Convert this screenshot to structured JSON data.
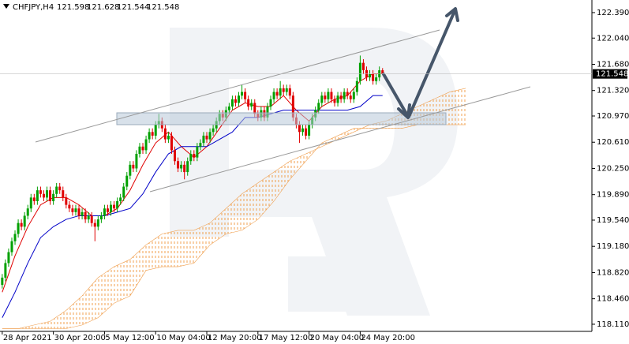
{
  "chart_data": {
    "type": "candlestick",
    "title": "CHFJPY,H4",
    "up_color": "#00a000",
    "down_color": "#e00000",
    "open": [
      118.65,
      118.75,
      118.95,
      119.1,
      119.25,
      119.35,
      119.5,
      119.45,
      119.6,
      119.7,
      119.85,
      119.8,
      119.95,
      119.9,
      119.85,
      119.95,
      119.8,
      119.9,
      120.0,
      119.95,
      119.85,
      119.75,
      119.7,
      119.65,
      119.7,
      119.6,
      119.65,
      119.55,
      119.6,
      119.5,
      119.45,
      119.55,
      119.6,
      119.7,
      119.65,
      119.75,
      119.7,
      119.8,
      119.85,
      120.0,
      120.15,
      120.3,
      120.25,
      120.45,
      120.55,
      120.5,
      120.65,
      120.75,
      120.7,
      120.85,
      120.9,
      120.8,
      120.65,
      120.7,
      120.5,
      120.35,
      120.25,
      120.3,
      120.2,
      120.35,
      120.45,
      120.4,
      120.55,
      120.6,
      120.7,
      120.65,
      120.75,
      120.8,
      120.9,
      121.0,
      120.95,
      121.05,
      121.1,
      121.2,
      121.15,
      121.25,
      121.3,
      121.2,
      121.1,
      121.15,
      121.0,
      120.95,
      121.05,
      120.95,
      121.1,
      121.2,
      121.3,
      121.25,
      121.35,
      121.3,
      121.35,
      121.25,
      120.95,
      120.85,
      120.75,
      120.8,
      120.7,
      120.85,
      120.95,
      121.05,
      121.15,
      121.25,
      121.2,
      121.3,
      121.2,
      121.15,
      121.25,
      121.2,
      121.3,
      121.25,
      121.2,
      121.3,
      121.45,
      121.7,
      121.6,
      121.5,
      121.55,
      121.45,
      121.5,
      121.598
    ],
    "high": [
      118.8,
      119.0,
      119.15,
      119.3,
      119.4,
      119.55,
      119.55,
      119.65,
      119.75,
      119.9,
      119.9,
      120.0,
      120.0,
      119.95,
      120.0,
      120.0,
      119.95,
      120.05,
      120.05,
      120.0,
      119.9,
      119.8,
      119.75,
      119.75,
      119.75,
      119.7,
      119.7,
      119.65,
      119.65,
      119.55,
      119.6,
      119.65,
      119.75,
      119.75,
      119.8,
      119.8,
      119.85,
      119.9,
      120.05,
      120.2,
      120.35,
      120.35,
      120.5,
      120.6,
      120.6,
      120.7,
      120.8,
      120.8,
      120.9,
      121.0,
      120.95,
      120.85,
      120.75,
      120.75,
      120.55,
      120.4,
      120.35,
      120.35,
      120.4,
      120.5,
      120.5,
      120.6,
      120.65,
      120.75,
      120.75,
      120.8,
      120.85,
      120.95,
      121.05,
      121.05,
      121.1,
      121.15,
      121.25,
      121.25,
      121.3,
      121.4,
      121.35,
      121.25,
      121.2,
      121.2,
      121.05,
      121.1,
      121.1,
      121.15,
      121.25,
      121.35,
      121.35,
      121.45,
      121.4,
      121.4,
      121.4,
      121.3,
      121.0,
      120.9,
      120.85,
      120.85,
      120.9,
      121.0,
      121.1,
      121.2,
      121.3,
      121.3,
      121.35,
      121.35,
      121.25,
      121.3,
      121.3,
      121.35,
      121.35,
      121.3,
      121.35,
      121.5,
      121.8,
      121.75,
      121.65,
      121.6,
      121.6,
      121.55,
      121.65,
      121.628
    ],
    "low": [
      118.6,
      118.7,
      118.9,
      119.05,
      119.2,
      119.3,
      119.4,
      119.4,
      119.55,
      119.65,
      119.75,
      119.75,
      119.85,
      119.8,
      119.8,
      119.75,
      119.75,
      119.85,
      119.9,
      119.8,
      119.7,
      119.65,
      119.6,
      119.6,
      119.55,
      119.55,
      119.5,
      119.5,
      119.45,
      119.25,
      119.4,
      119.5,
      119.55,
      119.6,
      119.6,
      119.65,
      119.65,
      119.75,
      119.8,
      119.95,
      120.1,
      120.2,
      120.2,
      120.4,
      120.45,
      120.45,
      120.6,
      120.65,
      120.65,
      120.8,
      120.75,
      120.6,
      120.6,
      120.45,
      120.3,
      120.2,
      120.2,
      120.1,
      120.15,
      120.3,
      120.35,
      120.35,
      120.5,
      120.55,
      120.6,
      120.6,
      120.7,
      120.75,
      120.85,
      120.9,
      120.9,
      121.0,
      121.05,
      121.1,
      121.1,
      121.2,
      121.15,
      121.05,
      121.05,
      120.95,
      120.9,
      120.9,
      120.9,
      120.9,
      121.05,
      121.15,
      121.2,
      121.2,
      121.25,
      121.25,
      121.2,
      120.9,
      120.8,
      120.6,
      120.7,
      120.65,
      120.65,
      120.8,
      120.9,
      121.0,
      121.1,
      121.15,
      121.15,
      121.15,
      121.1,
      121.1,
      121.15,
      121.15,
      121.2,
      121.15,
      121.15,
      121.25,
      121.4,
      121.55,
      121.45,
      121.45,
      121.4,
      121.4,
      121.45,
      121.544
    ],
    "close": [
      118.75,
      118.95,
      119.1,
      119.25,
      119.35,
      119.5,
      119.45,
      119.6,
      119.7,
      119.85,
      119.8,
      119.95,
      119.9,
      119.85,
      119.95,
      119.8,
      119.9,
      120.0,
      119.95,
      119.85,
      119.75,
      119.7,
      119.65,
      119.7,
      119.6,
      119.65,
      119.55,
      119.6,
      119.5,
      119.45,
      119.55,
      119.6,
      119.7,
      119.65,
      119.75,
      119.7,
      119.8,
      119.85,
      120.0,
      120.15,
      120.3,
      120.25,
      120.45,
      120.55,
      120.5,
      120.65,
      120.75,
      120.7,
      120.85,
      120.9,
      120.8,
      120.65,
      120.7,
      120.5,
      120.35,
      120.25,
      120.3,
      120.2,
      120.35,
      120.45,
      120.4,
      120.55,
      120.6,
      120.7,
      120.65,
      120.75,
      120.8,
      120.9,
      121.0,
      120.95,
      121.05,
      121.1,
      121.2,
      121.15,
      121.25,
      121.3,
      121.2,
      121.1,
      121.15,
      121.0,
      120.95,
      121.05,
      120.95,
      121.1,
      121.2,
      121.3,
      121.25,
      121.35,
      121.3,
      121.35,
      121.25,
      120.95,
      120.85,
      120.75,
      120.8,
      120.7,
      120.85,
      120.95,
      121.05,
      121.15,
      121.25,
      121.2,
      121.3,
      121.2,
      121.15,
      121.25,
      121.2,
      121.3,
      121.25,
      121.2,
      121.3,
      121.45,
      121.7,
      121.6,
      121.5,
      121.55,
      121.45,
      121.5,
      121.598,
      121.548
    ],
    "tenkan": {
      "color": "#e00000",
      "x": [
        0,
        4,
        8,
        12,
        16,
        20,
        24,
        28,
        32,
        36,
        40,
        44,
        48,
        52,
        56,
        60,
        64,
        68,
        72,
        76,
        80,
        84,
        88,
        92,
        96,
        100,
        104,
        108,
        112,
        116,
        119
      ],
      "values": [
        118.55,
        119.05,
        119.45,
        119.75,
        119.85,
        119.85,
        119.75,
        119.6,
        119.6,
        119.7,
        119.95,
        120.3,
        120.6,
        120.75,
        120.55,
        120.4,
        120.55,
        120.8,
        121.05,
        121.15,
        121.1,
        121.1,
        121.25,
        121.05,
        120.9,
        121.1,
        121.2,
        121.25,
        121.45,
        121.55,
        121.55
      ]
    },
    "kijun": {
      "color": "#0000c8",
      "x": [
        0,
        4,
        8,
        12,
        16,
        20,
        24,
        28,
        32,
        36,
        40,
        44,
        48,
        52,
        56,
        60,
        64,
        68,
        72,
        76,
        80,
        84,
        88,
        92,
        96,
        100,
        104,
        108,
        112,
        116,
        119
      ],
      "values": [
        118.2,
        118.55,
        118.95,
        119.3,
        119.45,
        119.55,
        119.6,
        119.6,
        119.6,
        119.65,
        119.7,
        119.9,
        120.2,
        120.45,
        120.55,
        120.55,
        120.55,
        120.65,
        120.75,
        120.95,
        120.95,
        121.0,
        121.05,
        121.05,
        121.05,
        121.05,
        121.05,
        121.05,
        121.1,
        121.25,
        121.25
      ]
    },
    "cloud": {
      "color": "#f0a050",
      "x": [
        0,
        5,
        10,
        15,
        20,
        25,
        30,
        35,
        40,
        45,
        50,
        55,
        60,
        65,
        70,
        75,
        80,
        85,
        90,
        95,
        100,
        105,
        110,
        115,
        120,
        125,
        130,
        135,
        140,
        145
      ],
      "span_a": [
        118.05,
        118.05,
        118.1,
        118.15,
        118.3,
        118.5,
        118.75,
        118.9,
        119.0,
        119.2,
        119.35,
        119.4,
        119.4,
        119.5,
        119.7,
        119.9,
        120.05,
        120.2,
        120.35,
        120.45,
        120.55,
        120.65,
        120.75,
        120.85,
        120.9,
        121.0,
        121.1,
        121.2,
        121.3,
        121.35
      ],
      "span_b": [
        118.05,
        118.05,
        118.05,
        118.05,
        118.05,
        118.1,
        118.2,
        118.4,
        118.5,
        118.85,
        118.9,
        118.9,
        118.95,
        119.2,
        119.35,
        119.4,
        119.55,
        119.8,
        120.1,
        120.35,
        120.6,
        120.7,
        120.8,
        120.8,
        120.8,
        120.8,
        120.85,
        120.85,
        120.85,
        120.85
      ]
    },
    "xlim": [
      -0.7,
      184.5
    ],
    "xticks": [
      {
        "value": 0,
        "label": "28 Apr 2021"
      },
      {
        "value": 16,
        "label": "30 Apr 20:00"
      },
      {
        "value": 32,
        "label": "5 May 12:00"
      },
      {
        "value": 48,
        "label": "10 May 04:00"
      },
      {
        "value": 64,
        "label": "12 May 20:00"
      },
      {
        "value": 80,
        "label": "17 May 12:00"
      },
      {
        "value": 96,
        "label": "20 May 04:00"
      },
      {
        "value": 112,
        "label": "24 May 20:00"
      }
    ],
    "ylim": [
      118.012,
      122.563
    ],
    "yticks": [
      {
        "value": 118.11,
        "label": "118.110"
      },
      {
        "value": 118.46,
        "label": "118.460"
      },
      {
        "value": 118.82,
        "label": "118.820"
      },
      {
        "value": 119.18,
        "label": "119.180"
      },
      {
        "value": 119.54,
        "label": "119.540"
      },
      {
        "value": 119.89,
        "label": "119.890"
      },
      {
        "value": 120.25,
        "label": "120.250"
      },
      {
        "value": 120.61,
        "label": "120.610"
      },
      {
        "value": 120.97,
        "label": "120.970"
      },
      {
        "value": 121.32,
        "label": "121.320"
      },
      {
        "value": 121.68,
        "label": "121.680"
      },
      {
        "value": 122.04,
        "label": "122.040"
      },
      {
        "value": 122.39,
        "label": "122.390"
      }
    ]
  }
}
